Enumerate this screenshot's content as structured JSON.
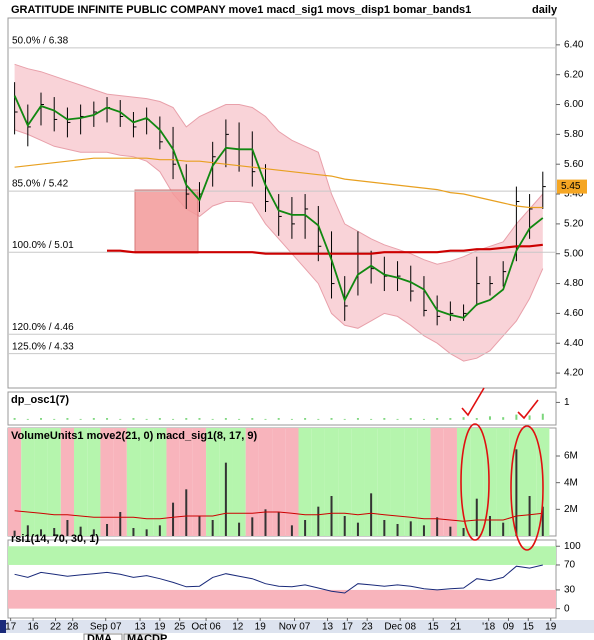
{
  "chart_data": [
    {
      "type": "ohlc",
      "title": "GRATITUDE INFINITE PUBLIC COMPANY move1 macd_sig1 movs_disp1 bomar_bands1",
      "period": "daily",
      "ylim": [
        4.1,
        6.58
      ],
      "yticks": [
        {
          "value": 4.2,
          "label": "4.20"
        },
        {
          "value": 4.4,
          "label": "4.40"
        },
        {
          "value": 4.6,
          "label": "4.60"
        },
        {
          "value": 4.8,
          "label": "4.80"
        },
        {
          "value": 5.0,
          "label": "5.00"
        },
        {
          "value": 5.2,
          "label": "5.20"
        },
        {
          "value": 5.4,
          "label": "5.40"
        },
        {
          "value": 5.6,
          "label": "5.60"
        },
        {
          "value": 5.8,
          "label": "5.80"
        },
        {
          "value": 6.0,
          "label": "6.00"
        },
        {
          "value": 6.2,
          "label": "6.20"
        },
        {
          "value": 6.4,
          "label": "6.40"
        }
      ],
      "high": [
        6.15,
        6.0,
        6.08,
        6.05,
        5.98,
        6.0,
        6.02,
        6.05,
        6.03,
        5.95,
        5.98,
        5.92,
        5.85,
        5.6,
        5.48,
        5.75,
        5.9,
        5.88,
        5.82,
        5.6,
        5.4,
        5.38,
        5.4,
        5.32,
        5.15,
        4.85,
        5.15,
        5.02,
        4.98,
        4.95,
        4.92,
        4.85,
        4.72,
        4.68,
        4.66,
        4.98,
        4.85,
        4.95,
        5.45,
        5.4,
        5.55
      ],
      "low": [
        5.8,
        5.72,
        5.86,
        5.82,
        5.78,
        5.8,
        5.85,
        5.88,
        5.85,
        5.78,
        5.8,
        5.7,
        5.5,
        5.3,
        5.28,
        5.45,
        5.58,
        5.55,
        5.45,
        5.28,
        5.12,
        5.1,
        5.1,
        4.95,
        4.7,
        4.55,
        4.72,
        4.8,
        4.75,
        4.75,
        4.68,
        4.58,
        4.52,
        4.55,
        4.55,
        4.65,
        4.72,
        4.78,
        4.95,
        5.1,
        5.3
      ],
      "close": [
        5.95,
        5.85,
        6.0,
        5.9,
        5.88,
        5.92,
        5.95,
        5.98,
        5.92,
        5.85,
        5.9,
        5.75,
        5.6,
        5.4,
        5.4,
        5.65,
        5.8,
        5.7,
        5.55,
        5.35,
        5.25,
        5.2,
        5.3,
        5.05,
        4.8,
        4.65,
        5.0,
        4.9,
        4.85,
        4.85,
        4.75,
        4.62,
        4.58,
        4.6,
        4.6,
        4.8,
        4.8,
        4.88,
        5.35,
        5.3,
        5.45
      ],
      "bar_color": "#000000",
      "bands": {
        "color": "#f9d3d8",
        "edge": "#e8a0aa",
        "upper": [
          6.27,
          6.24,
          6.22,
          6.19,
          6.16,
          6.13,
          6.1,
          6.07,
          6.06,
          6.05,
          6.04,
          6.02,
          5.98,
          5.85,
          5.92,
          5.96,
          6.0,
          6.0,
          5.98,
          5.92,
          5.82,
          5.76,
          5.72,
          5.68,
          5.4,
          5.2,
          5.15,
          5.1,
          5.06,
          5.03,
          5.0,
          4.96,
          4.93,
          4.95,
          4.98,
          5.02,
          5.05,
          5.08,
          5.2,
          5.3,
          5.4
        ],
        "lower": [
          5.83,
          5.8,
          5.76,
          5.72,
          5.7,
          5.68,
          5.68,
          5.68,
          5.66,
          5.65,
          5.62,
          5.55,
          5.4,
          5.3,
          5.25,
          5.32,
          5.35,
          5.35,
          5.34,
          5.2,
          5.1,
          5.0,
          4.9,
          4.8,
          4.6,
          4.52,
          4.5,
          4.55,
          4.6,
          4.58,
          4.52,
          4.45,
          4.4,
          4.33,
          4.28,
          4.3,
          4.35,
          4.45,
          4.55,
          4.7,
          4.9
        ]
      },
      "series": [
        {
          "color": "#e8a020",
          "width": 1.2,
          "values": [
            5.58,
            5.59,
            5.6,
            5.61,
            5.62,
            5.63,
            5.64,
            5.64,
            5.64,
            5.64,
            5.64,
            5.63,
            5.63,
            5.62,
            5.62,
            5.61,
            5.6,
            5.59,
            5.58,
            5.57,
            5.56,
            5.55,
            5.54,
            5.53,
            5.52,
            5.5,
            5.49,
            5.48,
            5.47,
            5.46,
            5.45,
            5.44,
            5.43,
            5.41,
            5.4,
            5.38,
            5.36,
            5.34,
            5.32,
            5.31,
            5.31
          ]
        },
        {
          "color": "#cc0000",
          "width": 2.2,
          "values": [
            null,
            null,
            null,
            null,
            null,
            null,
            null,
            5.02,
            5.02,
            5.01,
            5.01,
            5.01,
            5.01,
            5.01,
            5.01,
            5.01,
            5.01,
            5.01,
            5.01,
            5.0,
            5.0,
            5.0,
            5.0,
            5.0,
            5.0,
            5.0,
            5.0,
            5.0,
            5.01,
            5.01,
            5.01,
            5.01,
            5.01,
            5.02,
            5.02,
            5.03,
            5.03,
            5.04,
            5.05,
            5.05,
            5.06
          ]
        },
        {
          "color": "#118811",
          "width": 1.8,
          "values": [
            6.06,
            5.86,
            5.99,
            5.96,
            5.9,
            5.91,
            5.93,
            5.98,
            5.95,
            5.88,
            5.91,
            5.83,
            5.7,
            5.46,
            5.36,
            5.59,
            5.71,
            5.7,
            5.7,
            5.46,
            5.29,
            5.26,
            5.26,
            5.19,
            4.96,
            4.69,
            4.86,
            4.92,
            4.86,
            4.84,
            4.81,
            4.76,
            4.62,
            4.59,
            4.57,
            4.66,
            4.69,
            4.76,
            5.02,
            5.17,
            5.24
          ]
        }
      ],
      "levels": [
        {
          "label": "50.0% / 6.38",
          "value": 6.38,
          "color": "#cc0000"
        },
        {
          "label": "85.0% / 5.42",
          "value": 5.42,
          "color": "#000000"
        },
        {
          "label": "100.0% / 5.01",
          "value": 5.01,
          "color": "#000000"
        },
        {
          "label": "120.0% / 4.46",
          "value": 4.46,
          "color": "#000000"
        },
        {
          "label": "125.0% / 4.33",
          "value": 4.33,
          "color": "#000000"
        }
      ],
      "last_value": 5.45
    },
    {
      "type": "bar",
      "title": "dp_osc1(7)",
      "ylim": [
        -0.3,
        1.6
      ],
      "yticks": [
        1
      ],
      "color": "#7cd67c",
      "values": [
        0.1,
        0.05,
        0.1,
        0.05,
        0.1,
        0.05,
        0.1,
        0.1,
        0.05,
        0.1,
        0.05,
        0.1,
        0.05,
        0.1,
        0.1,
        0.05,
        0.1,
        0.05,
        0.1,
        0.05,
        0.1,
        0.05,
        0.1,
        0.05,
        0.1,
        0.05,
        0.1,
        0.05,
        0.1,
        0.05,
        0.1,
        0.05,
        0.1,
        0.1,
        0.15,
        0.1,
        0.2,
        0.15,
        0.3,
        0.25,
        0.35
      ]
    },
    {
      "type": "bar",
      "title": "VolumeUnits1 move2(21, 0) macd_sig1(8, 17, 9)",
      "ylim": [
        0,
        8100000
      ],
      "yticks": [
        {
          "value": 2000000,
          "label": "2M"
        },
        {
          "value": 4000000,
          "label": "4M"
        },
        {
          "value": 6000000,
          "label": "6M"
        }
      ],
      "color": "#333333",
      "values": [
        400000,
        800000,
        500000,
        600000,
        1200000,
        700000,
        500000,
        900000,
        1800000,
        600000,
        500000,
        800000,
        2500000,
        3500000,
        1500000,
        1200000,
        5500000,
        1000000,
        1400000,
        2000000,
        1800000,
        800000,
        1200000,
        2200000,
        3000000,
        1500000,
        1000000,
        3200000,
        1200000,
        900000,
        1100000,
        800000,
        1400000,
        700000,
        600000,
        2800000,
        1500000,
        1000000,
        6500000,
        3000000,
        2200000
      ],
      "shading": [
        "#f8b4bc",
        "#b5f5ad",
        "#b5f5ad",
        "#b5f5ad",
        "#f8b4bc",
        "#b5f5ad",
        "#b5f5ad",
        "#f8b4bc",
        "#f8b4bc",
        "#b5f5ad",
        "#b5f5ad",
        "#b5f5ad",
        "#f8b4bc",
        "#f8b4bc",
        "#f8b4bc",
        "#b5f5ad",
        "#b5f5ad",
        "#b5f5ad",
        "#f8b4bc",
        "#f8b4bc",
        "#f8b4bc",
        "#f8b4bc",
        "#b5f5ad",
        "#b5f5ad",
        "#b5f5ad",
        "#b5f5ad",
        "#b5f5ad",
        "#b5f5ad",
        "#b5f5ad",
        "#b5f5ad",
        "#b5f5ad",
        "#b5f5ad",
        "#f8b4bc",
        "#f8b4bc",
        "#b5f5ad",
        "#b5f5ad",
        "#b5f5ad",
        "#b5f5ad",
        "#b5f5ad",
        "#b5f5ad",
        "#b5f5ad"
      ],
      "series": [
        {
          "color": "#cc0000",
          "width": 1,
          "values": [
            1900000,
            1800000,
            1700000,
            1600000,
            1600000,
            1500000,
            1400000,
            1400000,
            1400000,
            1400000,
            1300000,
            1300000,
            1400000,
            1500000,
            1500000,
            1500000,
            1700000,
            1700000,
            1700000,
            1800000,
            1800000,
            1700000,
            1600000,
            1600000,
            1700000,
            1700000,
            1600000,
            1700000,
            1600000,
            1500000,
            1400000,
            1300000,
            1300000,
            1200000,
            1100000,
            1200000,
            1200000,
            1200000,
            1500000,
            1600000,
            1700000
          ]
        }
      ]
    },
    {
      "type": "line",
      "title": "rsi1(14, 70, 30, 1)",
      "ylim": [
        -15,
        110
      ],
      "yticks": [
        0,
        30,
        70,
        100
      ],
      "bands": [
        {
          "from": 70,
          "to": 100,
          "color": "#b5f5ad"
        },
        {
          "from": 0,
          "to": 30,
          "color": "#f8b4bc"
        }
      ],
      "series": [
        {
          "color": "#1a2a7a",
          "width": 1,
          "values": [
            55,
            50,
            58,
            55,
            52,
            54,
            56,
            58,
            55,
            50,
            53,
            48,
            42,
            35,
            36,
            50,
            56,
            52,
            48,
            40,
            36,
            35,
            38,
            33,
            28,
            25,
            40,
            38,
            36,
            38,
            36,
            32,
            30,
            32,
            33,
            48,
            45,
            50,
            68,
            65,
            70
          ]
        }
      ]
    }
  ],
  "x_axis": {
    "xlim": [
      0,
      41.5
    ],
    "ticks": [
      {
        "value": 0.2,
        "label": "17"
      },
      {
        "value": 1.9,
        "label": "16"
      },
      {
        "value": 3.6,
        "label": "22"
      },
      {
        "value": 4.9,
        "label": "28"
      },
      {
        "value": 7.4,
        "label": "Sep 07"
      },
      {
        "value": 10,
        "label": "13"
      },
      {
        "value": 11.5,
        "label": "19"
      },
      {
        "value": 13,
        "label": "25"
      },
      {
        "value": 15,
        "label": "Oct 06"
      },
      {
        "value": 17.4,
        "label": "12"
      },
      {
        "value": 19.1,
        "label": "19"
      },
      {
        "value": 21.7,
        "label": "Nov 07"
      },
      {
        "value": 24.2,
        "label": "13"
      },
      {
        "value": 25.7,
        "label": "17"
      },
      {
        "value": 27.2,
        "label": "23"
      },
      {
        "value": 29.7,
        "label": "Dec 08"
      },
      {
        "value": 32.2,
        "label": "15"
      },
      {
        "value": 33.9,
        "label": "21"
      },
      {
        "value": 36.4,
        "label": "'18"
      },
      {
        "value": 37.9,
        "label": "09"
      },
      {
        "value": 39.4,
        "label": "15"
      },
      {
        "value": 41.1,
        "label": "19"
      }
    ]
  },
  "tabs": [
    "DMA",
    "MACDP"
  ]
}
